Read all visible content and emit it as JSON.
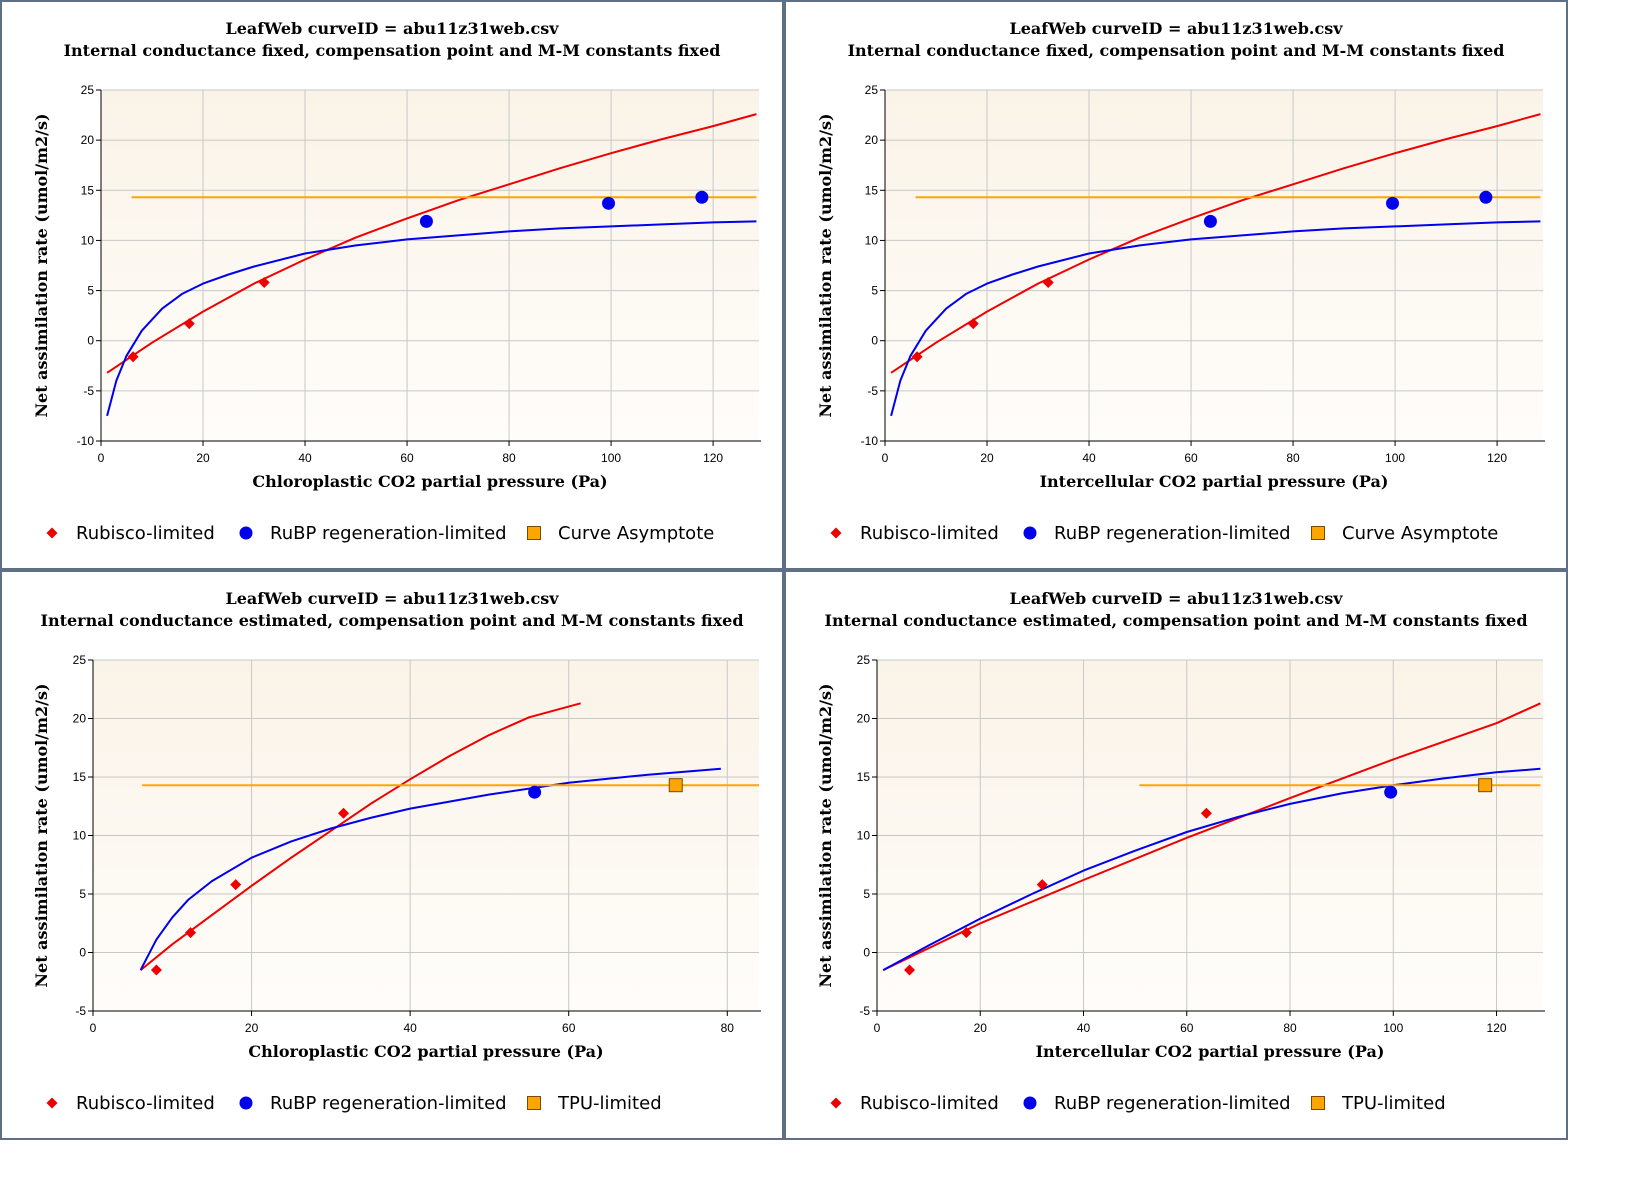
{
  "colors": {
    "border": "#5f7086",
    "plot_bg_top": "#faf3e8",
    "plot_bg_bottom": "#fffdfa",
    "grid": "#c8c8c8",
    "rubisco": "#ee0000",
    "rubp": "#0000ee",
    "tpu": "#ffa500",
    "marker_stroke": "#7a4a00"
  },
  "chart_data": [
    {
      "type": "scatter",
      "title": "LeafWeb curveID = abu11z31web.csv",
      "subtitle": "Internal conductance fixed, compensation point and M-M constants fixed",
      "xlabel": "Chloroplastic CO2 partial pressure (Pa)",
      "ylabel": "Net assimilation rate (umol/m2/s)",
      "xlim": [
        0,
        129
      ],
      "ylim": [
        -10,
        25
      ],
      "xticks": [
        0,
        20,
        40,
        60,
        80,
        100,
        120
      ],
      "yticks": [
        -10,
        -5,
        0,
        5,
        10,
        15,
        20,
        25
      ],
      "grid": true,
      "legend_position": "bottom",
      "legend": [
        {
          "label": "Rubisco-limited",
          "marker": "diamond",
          "color": "#ee0000"
        },
        {
          "label": "RuBP regeneration-limited",
          "marker": "circle",
          "color": "#0000ee"
        },
        {
          "label": "Curve Asymptote",
          "marker": "square",
          "color": "#ffa500"
        }
      ],
      "series": [
        {
          "name": "Rubisco-limited",
          "kind": "points",
          "marker": "diamond",
          "x": [
            6.3,
            17.3,
            32.0
          ],
          "y": [
            -1.6,
            1.7,
            5.8
          ]
        },
        {
          "name": "RuBP regeneration-limited",
          "kind": "points",
          "marker": "circle",
          "x": [
            63.8,
            99.5,
            117.8
          ],
          "y": [
            11.9,
            13.7,
            14.3
          ]
        },
        {
          "kind": "line",
          "color": "#ee0000",
          "x": [
            1.2,
            10,
            20,
            30,
            40,
            50,
            60,
            70,
            80,
            90,
            100,
            110,
            120,
            128.5
          ],
          "y": [
            -3.2,
            -0.2,
            2.9,
            5.7,
            8.1,
            10.3,
            12.2,
            14.0,
            15.6,
            17.2,
            18.7,
            20.1,
            21.4,
            22.6
          ]
        },
        {
          "kind": "line",
          "color": "#0000ee",
          "x": [
            1.2,
            3,
            5,
            8,
            12,
            16,
            20,
            25,
            30,
            40,
            50,
            60,
            70,
            80,
            90,
            100,
            110,
            120,
            128.5
          ],
          "y": [
            -7.5,
            -4.0,
            -1.5,
            1.0,
            3.2,
            4.7,
            5.7,
            6.6,
            7.4,
            8.7,
            9.5,
            10.1,
            10.5,
            10.9,
            11.2,
            11.4,
            11.6,
            11.8,
            11.9
          ]
        },
        {
          "kind": "line",
          "color": "#ffa500",
          "x": [
            6,
            128.5
          ],
          "y": [
            14.3,
            14.3
          ]
        }
      ]
    },
    {
      "type": "scatter",
      "title": "LeafWeb curveID = abu11z31web.csv",
      "subtitle": "Internal conductance fixed, compensation point and M-M constants fixed",
      "xlabel": "Intercellular CO2 partial pressure (Pa)",
      "ylabel": "Net assimilation rate (umol/m2/s)",
      "xlim": [
        0,
        129
      ],
      "ylim": [
        -10,
        25
      ],
      "xticks": [
        0,
        20,
        40,
        60,
        80,
        100,
        120
      ],
      "yticks": [
        -10,
        -5,
        0,
        5,
        10,
        15,
        20,
        25
      ],
      "grid": true,
      "legend_position": "bottom",
      "legend": [
        {
          "label": "Rubisco-limited",
          "marker": "diamond",
          "color": "#ee0000"
        },
        {
          "label": "RuBP regeneration-limited",
          "marker": "circle",
          "color": "#0000ee"
        },
        {
          "label": "Curve Asymptote",
          "marker": "square",
          "color": "#ffa500"
        }
      ],
      "series": [
        {
          "name": "Rubisco-limited",
          "kind": "points",
          "marker": "diamond",
          "x": [
            6.3,
            17.3,
            32.0
          ],
          "y": [
            -1.6,
            1.7,
            5.8
          ]
        },
        {
          "name": "RuBP regeneration-limited",
          "kind": "points",
          "marker": "circle",
          "x": [
            63.8,
            99.5,
            117.8
          ],
          "y": [
            11.9,
            13.7,
            14.3
          ]
        },
        {
          "kind": "line",
          "color": "#ee0000",
          "x": [
            1.2,
            10,
            20,
            30,
            40,
            50,
            60,
            70,
            80,
            90,
            100,
            110,
            120,
            128.5
          ],
          "y": [
            -3.2,
            -0.2,
            2.9,
            5.7,
            8.1,
            10.3,
            12.2,
            14.0,
            15.6,
            17.2,
            18.7,
            20.1,
            21.4,
            22.6
          ]
        },
        {
          "kind": "line",
          "color": "#0000ee",
          "x": [
            1.2,
            3,
            5,
            8,
            12,
            16,
            20,
            25,
            30,
            40,
            50,
            60,
            70,
            80,
            90,
            100,
            110,
            120,
            128.5
          ],
          "y": [
            -7.5,
            -4.0,
            -1.5,
            1.0,
            3.2,
            4.7,
            5.7,
            6.6,
            7.4,
            8.7,
            9.5,
            10.1,
            10.5,
            10.9,
            11.2,
            11.4,
            11.6,
            11.8,
            11.9
          ]
        },
        {
          "kind": "line",
          "color": "#ffa500",
          "x": [
            6,
            128.5
          ],
          "y": [
            14.3,
            14.3
          ]
        }
      ]
    },
    {
      "type": "scatter",
      "title": "LeafWeb curveID = abu11z31web.csv",
      "subtitle": "Internal conductance estimated, compensation point and M-M constants fixed",
      "xlabel": "Chloroplastic CO2 partial pressure (Pa)",
      "ylabel": "Net assimilation rate (umol/m2/s)",
      "xlim": [
        0,
        84
      ],
      "ylim": [
        -5,
        25
      ],
      "xticks": [
        0,
        20,
        40,
        60,
        80
      ],
      "yticks": [
        -5,
        0,
        5,
        10,
        15,
        20,
        25
      ],
      "grid": true,
      "legend_position": "bottom",
      "legend": [
        {
          "label": "Rubisco-limited",
          "marker": "diamond",
          "color": "#ee0000"
        },
        {
          "label": "RuBP regeneration-limited",
          "marker": "circle",
          "color": "#0000ee"
        },
        {
          "label": "TPU-limited",
          "marker": "square",
          "color": "#ffa500"
        }
      ],
      "series": [
        {
          "name": "Rubisco-limited",
          "kind": "points",
          "marker": "diamond",
          "x": [
            8.0,
            12.3,
            18.0,
            31.6
          ],
          "y": [
            -1.5,
            1.7,
            5.8,
            11.9
          ]
        },
        {
          "name": "RuBP regeneration-limited",
          "kind": "points",
          "marker": "circle",
          "x": [
            55.7
          ],
          "y": [
            13.7
          ]
        },
        {
          "name": "TPU-limited",
          "kind": "points",
          "marker": "square",
          "x": [
            73.5
          ],
          "y": [
            14.3
          ]
        },
        {
          "kind": "line",
          "color": "#ee0000",
          "x": [
            6,
            10,
            15,
            20,
            25,
            30,
            35,
            40,
            45,
            50,
            55,
            61.5
          ],
          "y": [
            -1.5,
            0.7,
            3.2,
            5.7,
            8.1,
            10.4,
            12.7,
            14.8,
            16.8,
            18.6,
            20.1,
            21.3
          ]
        },
        {
          "kind": "line",
          "color": "#0000ee",
          "x": [
            6,
            8,
            10,
            12,
            15,
            20,
            25,
            30,
            35,
            40,
            50,
            60,
            70,
            79.2
          ],
          "y": [
            -1.5,
            1.1,
            3.0,
            4.5,
            6.1,
            8.1,
            9.5,
            10.6,
            11.5,
            12.3,
            13.5,
            14.5,
            15.2,
            15.7
          ]
        },
        {
          "kind": "line",
          "color": "#ffa500",
          "x": [
            6.2,
            84
          ],
          "y": [
            14.3,
            14.3
          ]
        }
      ]
    },
    {
      "type": "scatter",
      "title": "LeafWeb curveID = abu11z31web.csv",
      "subtitle": "Internal conductance estimated, compensation point and M-M constants fixed",
      "xlabel": "Intercellular CO2 partial pressure (Pa)",
      "ylabel": "Net assimilation rate (umol/m2/s)",
      "xlim": [
        0,
        129
      ],
      "ylim": [
        -5,
        25
      ],
      "xticks": [
        0,
        20,
        40,
        60,
        80,
        100,
        120
      ],
      "yticks": [
        -5,
        0,
        5,
        10,
        15,
        20,
        25
      ],
      "grid": true,
      "legend_position": "bottom",
      "legend": [
        {
          "label": "Rubisco-limited",
          "marker": "diamond",
          "color": "#ee0000"
        },
        {
          "label": "RuBP regeneration-limited",
          "marker": "circle",
          "color": "#0000ee"
        },
        {
          "label": "TPU-limited",
          "marker": "square",
          "color": "#ffa500"
        }
      ],
      "series": [
        {
          "name": "Rubisco-limited",
          "kind": "points",
          "marker": "diamond",
          "x": [
            6.3,
            17.3,
            32.0,
            63.8
          ],
          "y": [
            -1.5,
            1.7,
            5.8,
            11.9
          ]
        },
        {
          "name": "RuBP regeneration-limited",
          "kind": "points",
          "marker": "circle",
          "x": [
            99.5
          ],
          "y": [
            13.7
          ]
        },
        {
          "name": "TPU-limited",
          "kind": "points",
          "marker": "square",
          "x": [
            117.8
          ],
          "y": [
            14.3
          ]
        },
        {
          "kind": "line",
          "color": "#ee0000",
          "x": [
            1.2,
            20,
            40,
            60,
            80,
            100,
            120,
            128.5
          ],
          "y": [
            -1.5,
            2.5,
            6.2,
            9.8,
            13.2,
            16.5,
            19.6,
            21.3
          ]
        },
        {
          "kind": "line",
          "color": "#0000ee",
          "x": [
            1.2,
            10,
            20,
            30,
            40,
            50,
            60,
            70,
            80,
            90,
            100,
            110,
            120,
            128.5
          ],
          "y": [
            -1.5,
            0.6,
            2.9,
            5.0,
            7.0,
            8.7,
            10.3,
            11.6,
            12.7,
            13.6,
            14.3,
            14.9,
            15.4,
            15.7
          ]
        },
        {
          "kind": "line",
          "color": "#ffa500",
          "x": [
            50.8,
            128.5
          ],
          "y": [
            14.3,
            14.3
          ]
        }
      ]
    }
  ]
}
